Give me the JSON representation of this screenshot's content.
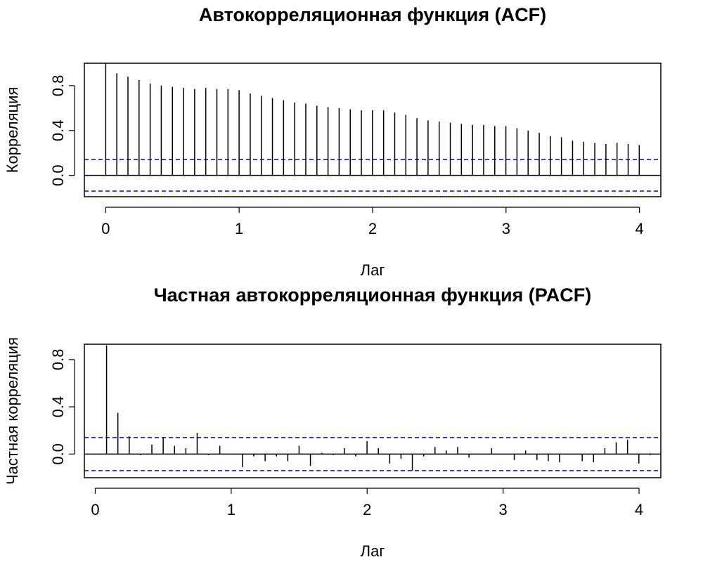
{
  "chart_data": [
    {
      "type": "bar",
      "subtype": "acf",
      "title": "Автокорреляционная функция (ACF)",
      "xlabel": "Лаг",
      "ylabel": "Корреляция",
      "xlim": [
        -0.16,
        4.16
      ],
      "ylim": [
        -0.19,
        1.0
      ],
      "x_ticks": [
        0,
        1,
        2,
        3,
        4
      ],
      "x_tick_labels": [
        "0",
        "1",
        "2",
        "3",
        "4"
      ],
      "y_ticks": [
        0.0,
        0.4,
        0.8
      ],
      "y_tick_labels": [
        "0.0",
        "0.4",
        "0.8"
      ],
      "lag_step": 0.0833,
      "values": [
        1.0,
        0.91,
        0.88,
        0.85,
        0.82,
        0.8,
        0.79,
        0.78,
        0.77,
        0.78,
        0.77,
        0.77,
        0.76,
        0.73,
        0.71,
        0.69,
        0.67,
        0.65,
        0.64,
        0.62,
        0.61,
        0.6,
        0.59,
        0.58,
        0.58,
        0.58,
        0.56,
        0.54,
        0.51,
        0.49,
        0.48,
        0.47,
        0.46,
        0.45,
        0.45,
        0.44,
        0.44,
        0.42,
        0.4,
        0.38,
        0.35,
        0.34,
        0.31,
        0.3,
        0.29,
        0.28,
        0.29,
        0.28,
        0.27
      ],
      "confidence_limit": 0.14,
      "confidence_line_color": "#0000ff",
      "bar_color": "#000000"
    },
    {
      "type": "bar",
      "subtype": "pacf",
      "title": "Частная автокорреляционная функция (PACF)",
      "xlabel": "Лаг",
      "ylabel": "Частная корреляция",
      "xlim": [
        -0.08,
        4.16
      ],
      "ylim": [
        -0.2,
        0.93
      ],
      "x_ticks": [
        0,
        1,
        2,
        3,
        4
      ],
      "x_tick_labels": [
        "0",
        "1",
        "2",
        "3",
        "4"
      ],
      "y_ticks": [
        0.0,
        0.4,
        0.8
      ],
      "y_tick_labels": [
        "0.0",
        "0.4",
        "0.8"
      ],
      "lag_step": 0.0833,
      "first_lag": 0.0833,
      "values": [
        0.92,
        0.35,
        0.15,
        -0.01,
        0.08,
        0.14,
        0.07,
        0.05,
        0.18,
        -0.01,
        0.07,
        0.0,
        -0.11,
        -0.02,
        -0.06,
        -0.02,
        -0.06,
        0.07,
        -0.1,
        0.01,
        -0.01,
        0.05,
        -0.02,
        0.11,
        0.05,
        -0.08,
        -0.04,
        -0.14,
        -0.02,
        0.06,
        0.03,
        0.06,
        -0.03,
        0.0,
        0.05,
        0.0,
        -0.05,
        0.03,
        -0.05,
        -0.06,
        -0.07,
        0.0,
        -0.06,
        -0.07,
        0.05,
        0.1,
        0.12,
        -0.08,
        -0.01
      ],
      "confidence_limit": 0.14,
      "confidence_line_color": "#0000ff",
      "bar_color": "#000000"
    }
  ]
}
